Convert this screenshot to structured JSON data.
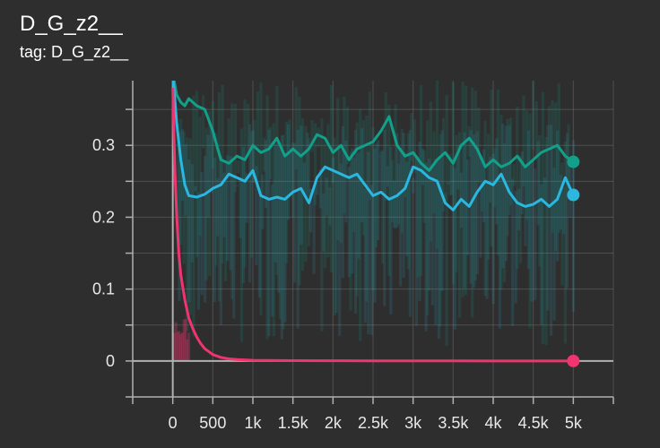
{
  "header": {
    "title": "D_G_z2__",
    "tag_prefix": "tag:",
    "tag_value": "D_G_z2__"
  },
  "colors": {
    "background": "#2e2e2e",
    "grid": "#6a6a6a",
    "axis": "#b0b0b0",
    "teal": "#12a08a",
    "cyan": "#2ab7e0",
    "pink": "#ef3470"
  },
  "chart_data": {
    "type": "line",
    "title": "D_G_z2__",
    "xlabel": "",
    "ylabel": "",
    "xlim": [
      -500,
      5500
    ],
    "ylim": [
      -0.05,
      0.39
    ],
    "grid": true,
    "legend": "none",
    "x_ticks": [
      0,
      500,
      1000,
      1500,
      2000,
      2500,
      3000,
      3500,
      4000,
      4500,
      5000
    ],
    "x_tick_labels": [
      "0",
      "500",
      "1k",
      "1.5k",
      "2k",
      "2.5k",
      "3k",
      "3.5k",
      "4k",
      "4.5k",
      "5k"
    ],
    "y_ticks": [
      0,
      0.1,
      0.2,
      0.3
    ],
    "y_tick_labels": [
      "0",
      "0.1",
      "0.2",
      "0.3"
    ],
    "series": [
      {
        "color": "#12a08a",
        "x": [
          0,
          50,
          100,
          150,
          200,
          300,
          400,
          500,
          600,
          700,
          800,
          900,
          1000,
          1100,
          1200,
          1300,
          1400,
          1500,
          1600,
          1700,
          1800,
          1900,
          2000,
          2100,
          2200,
          2300,
          2400,
          2500,
          2600,
          2700,
          2800,
          2900,
          3000,
          3100,
          3200,
          3300,
          3400,
          3500,
          3600,
          3700,
          3800,
          3900,
          4000,
          4100,
          4200,
          4300,
          4400,
          4500,
          4600,
          4700,
          4800,
          4900,
          5000
        ],
        "y": [
          0.4,
          0.37,
          0.36,
          0.355,
          0.365,
          0.355,
          0.35,
          0.32,
          0.28,
          0.275,
          0.285,
          0.28,
          0.3,
          0.29,
          0.295,
          0.31,
          0.285,
          0.295,
          0.285,
          0.295,
          0.315,
          0.31,
          0.29,
          0.3,
          0.28,
          0.295,
          0.3,
          0.305,
          0.32,
          0.34,
          0.3,
          0.285,
          0.29,
          0.275,
          0.265,
          0.28,
          0.29,
          0.275,
          0.3,
          0.31,
          0.295,
          0.27,
          0.28,
          0.27,
          0.275,
          0.285,
          0.27,
          0.28,
          0.29,
          0.295,
          0.3,
          0.285,
          0.277
        ]
      },
      {
        "color": "#2ab7e0",
        "x": [
          0,
          50,
          100,
          150,
          200,
          300,
          400,
          500,
          600,
          700,
          800,
          900,
          1000,
          1100,
          1200,
          1300,
          1400,
          1500,
          1600,
          1700,
          1800,
          1900,
          2000,
          2100,
          2200,
          2300,
          2400,
          2500,
          2600,
          2700,
          2800,
          2900,
          3000,
          3100,
          3200,
          3300,
          3400,
          3500,
          3600,
          3700,
          3800,
          3900,
          4000,
          4100,
          4200,
          4300,
          4400,
          4500,
          4600,
          4700,
          4800,
          4900,
          5000
        ],
        "y": [
          0.4,
          0.33,
          0.28,
          0.245,
          0.23,
          0.228,
          0.232,
          0.24,
          0.245,
          0.26,
          0.255,
          0.25,
          0.265,
          0.23,
          0.225,
          0.228,
          0.225,
          0.235,
          0.24,
          0.22,
          0.255,
          0.27,
          0.265,
          0.26,
          0.255,
          0.26,
          0.245,
          0.23,
          0.235,
          0.225,
          0.23,
          0.24,
          0.27,
          0.265,
          0.255,
          0.25,
          0.22,
          0.21,
          0.225,
          0.215,
          0.235,
          0.25,
          0.245,
          0.26,
          0.235,
          0.22,
          0.215,
          0.218,
          0.225,
          0.215,
          0.225,
          0.255,
          0.231
        ]
      },
      {
        "color": "#ef3470",
        "x": [
          0,
          25,
          50,
          75,
          100,
          150,
          200,
          250,
          300,
          350,
          400,
          500,
          600,
          700,
          800,
          1000,
          1500,
          2000,
          2500,
          3000,
          3500,
          4000,
          4500,
          5000
        ],
        "y": [
          0.38,
          0.27,
          0.2,
          0.15,
          0.12,
          0.085,
          0.06,
          0.045,
          0.033,
          0.024,
          0.017,
          0.009,
          0.005,
          0.003,
          0.002,
          0.001,
          0.0005,
          0.0003,
          0.0002,
          0.0001,
          0.0001,
          0.0,
          0.0,
          0.0
        ]
      }
    ]
  }
}
